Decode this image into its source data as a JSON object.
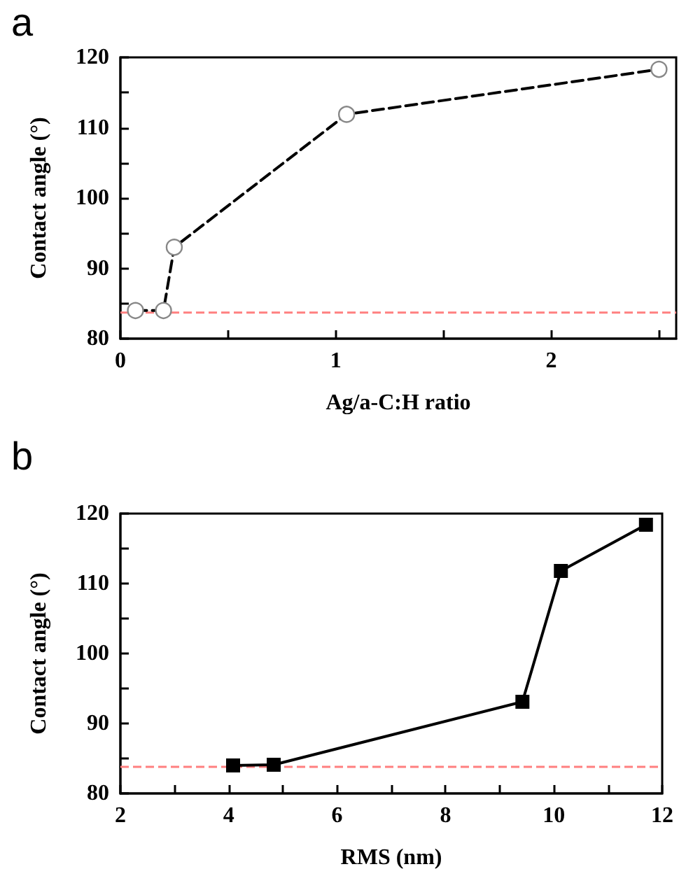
{
  "chart_data": [
    {
      "type": "line",
      "xlabel": "Ag/a-C:H ratio",
      "ylabel": "Contact angle (°)",
      "annotations": [
        "a"
      ],
      "series": [
        {
          "color": "#000000",
          "x": [
            0.07,
            0.2,
            0.25,
            1.05,
            2.5
          ],
          "values": [
            84,
            84,
            93,
            111.9,
            118.3
          ]
        }
      ],
      "marker": "circle",
      "line_style": "dashed",
      "grid": false,
      "xlim": [
        0,
        2.58
      ],
      "xticks": [
        0,
        {
          "value": 0.5,
          "label": null
        },
        1,
        {
          "value": 1.5,
          "label": null
        },
        2,
        {
          "value": 2.5,
          "label": null
        }
      ],
      "ylim": [
        80,
        120
      ],
      "yticks": [
        80,
        {
          "value": 85,
          "label": null
        },
        90,
        {
          "value": 95,
          "label": null
        },
        100,
        {
          "value": 105,
          "label": null
        },
        110,
        {
          "value": 115,
          "label": null
        },
        120
      ],
      "ref_lines": [
        {
          "axis": "y",
          "value": 83.7,
          "color": "#ff8080",
          "line_style": "dashed"
        }
      ]
    },
    {
      "type": "line",
      "xlabel": "RMS (nm)",
      "ylabel": "Contact angle (°)",
      "annotations": [
        "b"
      ],
      "series": [
        {
          "color": "#000000",
          "x": [
            4.08,
            4.83,
            9.42,
            10.13,
            11.7
          ],
          "values": [
            84,
            84.1,
            93.1,
            111.8,
            118.4
          ]
        }
      ],
      "marker": "square",
      "line_style": "solid",
      "grid": false,
      "xlim": [
        2,
        12
      ],
      "xticks": [
        2,
        {
          "value": 3,
          "label": null
        },
        4,
        {
          "value": 5,
          "label": null
        },
        6,
        {
          "value": 7,
          "label": null
        },
        8,
        {
          "value": 9,
          "label": null
        },
        10,
        {
          "value": 11,
          "label": null
        },
        12
      ],
      "ylim": [
        80,
        120
      ],
      "yticks": [
        80,
        {
          "value": 85,
          "label": null
        },
        90,
        {
          "value": 95,
          "label": null
        },
        100,
        {
          "value": 105,
          "label": null
        },
        110,
        {
          "value": 115,
          "label": null
        },
        120
      ],
      "ref_lines": [
        {
          "axis": "y",
          "value": 83.8,
          "color": "#ff8080",
          "line_style": "dashed"
        }
      ]
    }
  ]
}
